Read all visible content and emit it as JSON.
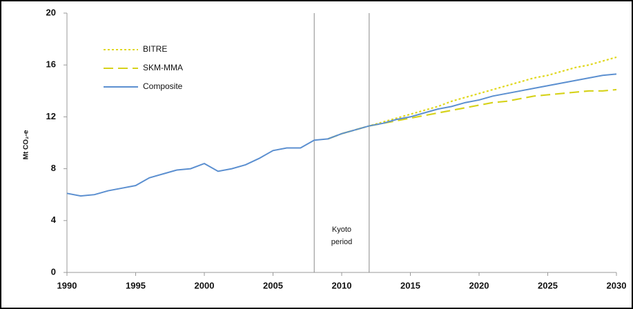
{
  "chart_data": {
    "type": "line",
    "y_label": "Mt CO₂-e",
    "x": [
      1990,
      1991,
      1992,
      1993,
      1994,
      1995,
      1996,
      1997,
      1998,
      1999,
      2000,
      2001,
      2002,
      2003,
      2004,
      2005,
      2006,
      2007,
      2008,
      2009,
      2010,
      2011,
      2012,
      2013,
      2014,
      2015,
      2016,
      2017,
      2018,
      2019,
      2020,
      2021,
      2022,
      2023,
      2024,
      2025,
      2026,
      2027,
      2028,
      2029,
      2030
    ],
    "series": [
      {
        "name": "BITRE",
        "color": "#e0d81e",
        "dash": "3,3",
        "values": [
          null,
          null,
          null,
          null,
          null,
          null,
          null,
          null,
          null,
          null,
          null,
          null,
          null,
          null,
          null,
          null,
          null,
          null,
          null,
          10.3,
          10.7,
          11.0,
          11.3,
          11.6,
          11.9,
          12.2,
          12.5,
          12.8,
          13.2,
          13.5,
          13.8,
          14.1,
          14.4,
          14.7,
          15.0,
          15.2,
          15.5,
          15.8,
          16.0,
          16.3,
          16.6
        ]
      },
      {
        "name": "SKM-MMA",
        "color": "#d6d21a",
        "dash": "14,7",
        "values": [
          null,
          null,
          null,
          null,
          null,
          null,
          null,
          null,
          null,
          null,
          null,
          null,
          null,
          null,
          null,
          null,
          null,
          null,
          null,
          10.3,
          10.7,
          11.0,
          11.3,
          11.5,
          11.7,
          11.9,
          12.1,
          12.3,
          12.5,
          12.7,
          12.9,
          13.1,
          13.2,
          13.4,
          13.6,
          13.7,
          13.8,
          13.9,
          14.0,
          14.0,
          14.1
        ]
      },
      {
        "name": "Composite",
        "color": "#5b8fd0",
        "dash": "none",
        "values": [
          6.1,
          5.9,
          6.0,
          6.3,
          6.5,
          6.7,
          7.3,
          7.6,
          7.9,
          8.0,
          8.4,
          7.8,
          8.0,
          8.3,
          8.8,
          9.4,
          9.6,
          9.6,
          10.2,
          10.3,
          10.7,
          11.0,
          11.3,
          11.5,
          11.8,
          12.0,
          12.3,
          12.6,
          12.8,
          13.1,
          13.3,
          13.6,
          13.8,
          14.0,
          14.2,
          14.4,
          14.6,
          14.8,
          15.0,
          15.2,
          15.3
        ]
      }
    ],
    "xlim": [
      1990,
      2030
    ],
    "xticks": [
      1990,
      1995,
      2000,
      2005,
      2010,
      2015,
      2020,
      2025,
      2030
    ],
    "ylim": [
      0,
      20
    ],
    "yticks": [
      0,
      4,
      8,
      12,
      16,
      20
    ],
    "vlines": [
      2008,
      2012
    ],
    "annotation": [
      "Kyoto",
      "period"
    ],
    "grid": false
  }
}
